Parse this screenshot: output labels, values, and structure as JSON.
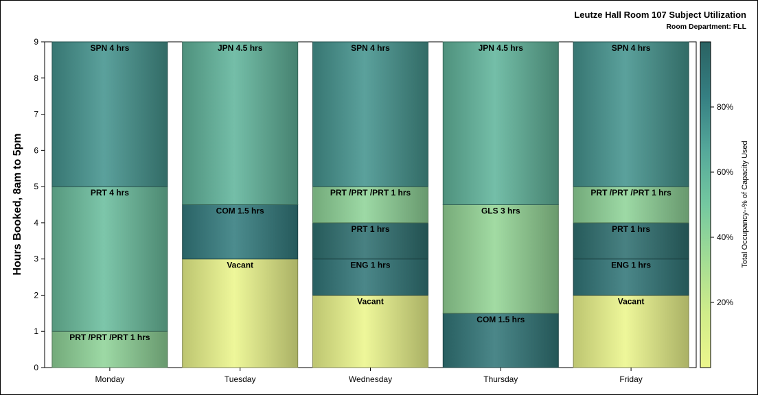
{
  "chart_data": {
    "type": "bar",
    "stacked": true,
    "title": "Leutze Hall Room 107 Subject Utilization",
    "subtitle": "Room Department: FLL",
    "xlabel": "",
    "ylabel": "Hours Booked, 8am to 5pm",
    "ylim": [
      0,
      9
    ],
    "yticks": [
      "0",
      "1",
      "2",
      "3",
      "4",
      "5",
      "6",
      "7",
      "8",
      "9"
    ],
    "categories": [
      "Monday",
      "Tuesday",
      "Wednesday",
      "Thursday",
      "Friday"
    ],
    "bars": [
      {
        "category": "Monday",
        "segments": [
          {
            "label": "PRT /PRT /PRT 1 hrs",
            "value": 1,
            "occupancy": 40
          },
          {
            "label": "PRT 4 hrs",
            "value": 4,
            "occupancy": 55
          },
          {
            "label": "SPN 4 hrs",
            "value": 4,
            "occupancy": 75
          }
        ]
      },
      {
        "category": "Tuesday",
        "segments": [
          {
            "label": "Vacant",
            "value": 3,
            "occupancy": 0
          },
          {
            "label": "COM 1.5 hrs",
            "value": 1.5,
            "occupancy": 85
          },
          {
            "label": "JPN 4.5 hrs",
            "value": 4.5,
            "occupancy": 60
          }
        ]
      },
      {
        "category": "Wednesday",
        "segments": [
          {
            "label": "Vacant",
            "value": 2,
            "occupancy": 0
          },
          {
            "label": "ENG 1 hrs",
            "value": 1,
            "occupancy": 88
          },
          {
            "label": "PRT 1 hrs",
            "value": 1,
            "occupancy": 92
          },
          {
            "label": "PRT /PRT /PRT 1 hrs",
            "value": 1,
            "occupancy": 40
          },
          {
            "label": "SPN 4 hrs",
            "value": 4,
            "occupancy": 75
          }
        ]
      },
      {
        "category": "Thursday",
        "segments": [
          {
            "label": "COM 1.5 hrs",
            "value": 1.5,
            "occupancy": 88
          },
          {
            "label": "GLS 3 hrs",
            "value": 3,
            "occupancy": 38
          },
          {
            "label": "JPN 4.5 hrs",
            "value": 4.5,
            "occupancy": 60
          }
        ]
      },
      {
        "category": "Friday",
        "segments": [
          {
            "label": "Vacant",
            "value": 2,
            "occupancy": 0
          },
          {
            "label": "ENG 1 hrs",
            "value": 1,
            "occupancy": 88
          },
          {
            "label": "PRT 1 hrs",
            "value": 1,
            "occupancy": 92
          },
          {
            "label": "PRT /PRT /PRT 1 hrs",
            "value": 1,
            "occupancy": 40
          },
          {
            "label": "SPN 4 hrs",
            "value": 4,
            "occupancy": 75
          }
        ]
      }
    ],
    "colorbar": {
      "label": "Total Occupancy--% of Capacity Used",
      "ticks": [
        "20%",
        "40%",
        "60%",
        "80%"
      ],
      "tick_values": [
        20,
        40,
        60,
        80
      ],
      "range": [
        0,
        100
      ],
      "colors": [
        "#ecf68c",
        "#d0ec8a",
        "#a2dc94",
        "#74c8a0",
        "#55a89a",
        "#357f82",
        "#2a6262"
      ]
    },
    "grid": false,
    "legend": "colorbar-right"
  }
}
